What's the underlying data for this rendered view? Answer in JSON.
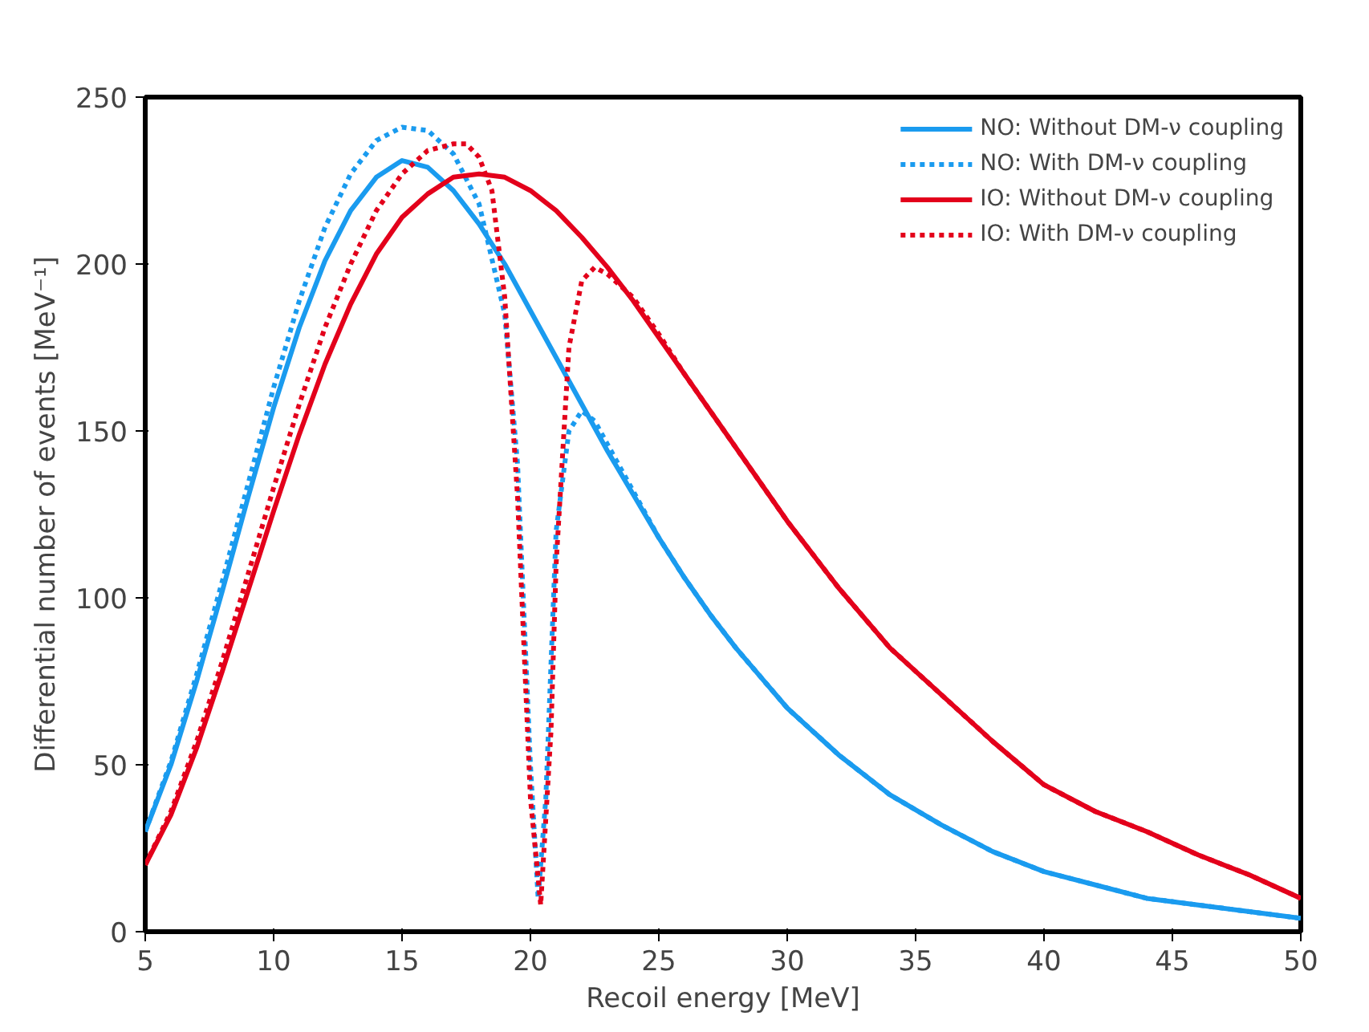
{
  "chart_data": {
    "type": "line",
    "xlabel": "Recoil energy [MeV]",
    "ylabel": "Differential number of events [MeV⁻¹]",
    "xlim": [
      5,
      50
    ],
    "ylim": [
      0,
      250
    ],
    "xticks": [
      5,
      10,
      15,
      20,
      25,
      30,
      35,
      40,
      45,
      50
    ],
    "yticks": [
      0,
      50,
      100,
      150,
      200,
      250
    ],
    "grid": false,
    "legend": "top right",
    "marker": "none",
    "series": [
      {
        "name": "NO: Without DM-ν coupling",
        "color": "#1a9bef",
        "line_style": "solid",
        "x": [
          5,
          6,
          7,
          8,
          9,
          10,
          11,
          12,
          13,
          14,
          15,
          16,
          17,
          18,
          19,
          20,
          21,
          22,
          23,
          24,
          25,
          26,
          27,
          28,
          29,
          30,
          32,
          34,
          36,
          38,
          40,
          42,
          44,
          46,
          48,
          50
        ],
        "values": [
          30,
          50,
          75,
          102,
          130,
          157,
          181,
          201,
          216,
          226,
          231,
          229,
          222,
          212,
          200,
          186,
          172,
          158,
          144,
          131,
          118,
          106,
          95,
          85,
          76,
          67,
          53,
          41,
          32,
          24,
          18,
          14,
          10,
          8,
          6,
          4
        ]
      },
      {
        "name": "NO: With DM-ν coupling",
        "color": "#1a9bef",
        "line_style": "dotted",
        "x": [
          5,
          6,
          7,
          8,
          9,
          10,
          11,
          12,
          13,
          14,
          15,
          16,
          17,
          18,
          19,
          19.5,
          20,
          20.3,
          20.6,
          21,
          21.5,
          22,
          22.5,
          23,
          24,
          25,
          26,
          27,
          28,
          29,
          30,
          32,
          34,
          36,
          38,
          40,
          42,
          44,
          46,
          48,
          50
        ],
        "values": [
          30,
          51,
          77,
          105,
          134,
          163,
          189,
          211,
          227,
          237,
          241,
          240,
          233,
          218,
          185,
          140,
          50,
          10,
          40,
          120,
          150,
          156,
          153,
          146,
          132,
          118,
          106,
          95,
          85,
          76,
          67,
          53,
          41,
          32,
          24,
          18,
          14,
          10,
          8,
          6,
          4
        ]
      },
      {
        "name": "IO: Without DM-ν coupling",
        "color": "#e3001b",
        "line_style": "solid",
        "x": [
          5,
          6,
          7,
          8,
          9,
          10,
          11,
          12,
          13,
          14,
          15,
          16,
          17,
          18,
          19,
          20,
          21,
          22,
          23,
          24,
          25,
          26,
          27,
          28,
          29,
          30,
          32,
          34,
          36,
          38,
          40,
          42,
          44,
          46,
          48,
          50
        ],
        "values": [
          20,
          35,
          55,
          78,
          102,
          126,
          149,
          170,
          188,
          203,
          214,
          221,
          226,
          227,
          226,
          222,
          216,
          208,
          199,
          189,
          178,
          167,
          156,
          145,
          134,
          123,
          103,
          85,
          71,
          57,
          44,
          36,
          30,
          23,
          17,
          10
        ]
      },
      {
        "name": "IO: With DM-ν coupling",
        "color": "#e3001b",
        "line_style": "dotted",
        "x": [
          5,
          6,
          7,
          8,
          9,
          10,
          11,
          12,
          13,
          14,
          15,
          16,
          17,
          17.5,
          18,
          18.5,
          19,
          19.5,
          20,
          20.4,
          20.8,
          21,
          21.5,
          22,
          22.5,
          23,
          24,
          25,
          26,
          27,
          28,
          29,
          30,
          32,
          34,
          36,
          38,
          40,
          42,
          44,
          46,
          48,
          50
        ],
        "values": [
          20,
          36,
          57,
          81,
          107,
          133,
          158,
          181,
          200,
          216,
          227,
          234,
          236,
          236,
          232,
          222,
          190,
          130,
          40,
          8,
          60,
          110,
          175,
          195,
          199,
          197,
          190,
          179,
          167,
          156,
          145,
          134,
          123,
          103,
          85,
          71,
          57,
          44,
          36,
          30,
          23,
          17,
          10
        ]
      }
    ]
  }
}
